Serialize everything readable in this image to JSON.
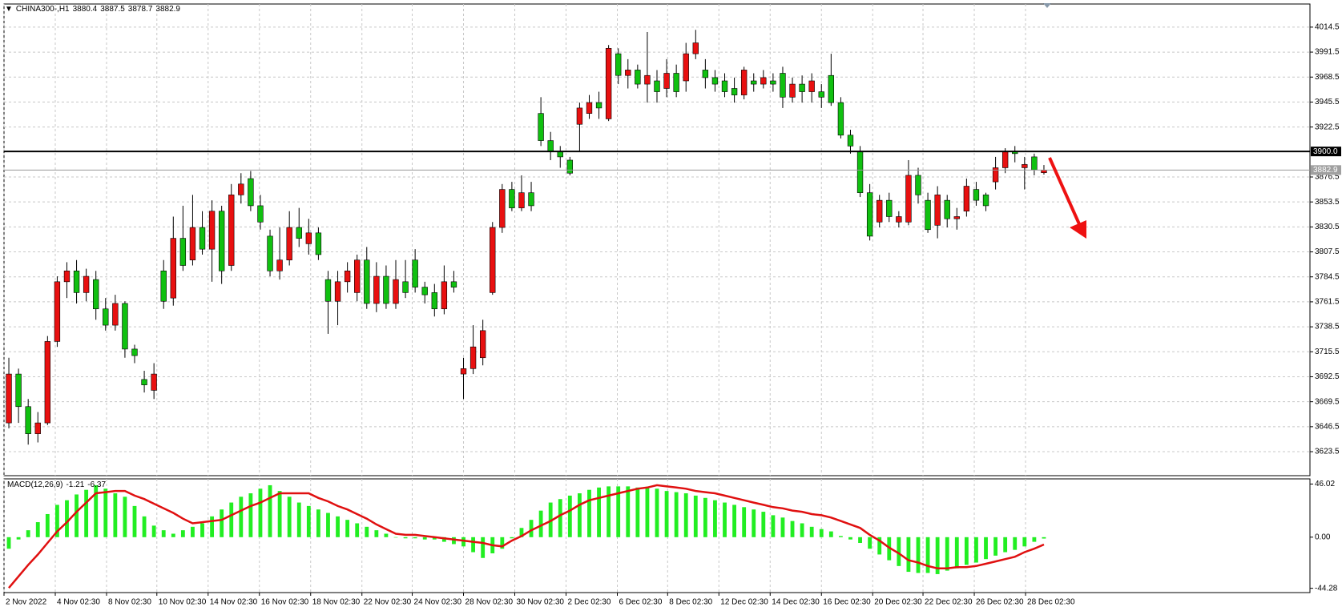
{
  "chart_data": {
    "type": "candlestick",
    "title": "CHINA300-,H1",
    "up_color": "#e81010",
    "down_color": "#10c010",
    "grid": true,
    "xlim": [
      0,
      135
    ],
    "xticks": [
      {
        "value": 0,
        "label": "2 Nov 2022"
      },
      {
        "value": 5.3,
        "label": "4 Nov 02:30"
      },
      {
        "value": 10.6,
        "label": "8 Nov 02:30"
      },
      {
        "value": 15.8,
        "label": "10 Nov 02:30"
      },
      {
        "value": 21.1,
        "label": "14 Nov 02:30"
      },
      {
        "value": 26.4,
        "label": "16 Nov 02:30"
      },
      {
        "value": 31.7,
        "label": "18 Nov 02:30"
      },
      {
        "value": 37.0,
        "label": "22 Nov 02:30"
      },
      {
        "value": 42.2,
        "label": "24 Nov 02:30"
      },
      {
        "value": 47.5,
        "label": "28 Nov 02:30"
      },
      {
        "value": 52.8,
        "label": "30 Nov 02:30"
      },
      {
        "value": 58.1,
        "label": "2 Dec 02:30"
      },
      {
        "value": 63.4,
        "label": "6 Dec 02:30"
      },
      {
        "value": 68.6,
        "label": "8 Dec 02:30"
      },
      {
        "value": 73.9,
        "label": "12 Dec 02:30"
      },
      {
        "value": 79.2,
        "label": "14 Dec 02:30"
      },
      {
        "value": 84.5,
        "label": "16 Dec 02:30"
      },
      {
        "value": 89.8,
        "label": "20 Dec 02:30"
      },
      {
        "value": 95.0,
        "label": "22 Dec 02:30"
      },
      {
        "value": 100.3,
        "label": "26 Dec 02:30"
      },
      {
        "value": 105.6,
        "label": "28 Dec 02:30"
      }
    ],
    "ylim": [
      3601.4,
      4035.8
    ],
    "yticks": [
      3623.5,
      3646.5,
      3669.5,
      3692.5,
      3715.5,
      3738.5,
      3761.5,
      3784.5,
      3807.5,
      3830.5,
      3853.5,
      3876.5,
      3922.5,
      3945.5,
      3968.5,
      3991.5,
      4014.5
    ],
    "levels": [
      {
        "value": 3900,
        "label": "3900.0",
        "color": "#000000"
      }
    ],
    "candles": [
      {
        "open": 3650,
        "high": 3710,
        "low": 3645,
        "close": 3695
      },
      {
        "open": 3695,
        "high": 3700,
        "low": 3650,
        "close": 3665
      },
      {
        "open": 3665,
        "high": 3672,
        "low": 3630,
        "close": 3640
      },
      {
        "open": 3640,
        "high": 3660,
        "low": 3632,
        "close": 3650
      },
      {
        "open": 3650,
        "high": 3730,
        "low": 3648,
        "close": 3725
      },
      {
        "open": 3725,
        "high": 3785,
        "low": 3720,
        "close": 3780
      },
      {
        "open": 3780,
        "high": 3798,
        "low": 3765,
        "close": 3790
      },
      {
        "open": 3790,
        "high": 3800,
        "low": 3760,
        "close": 3770
      },
      {
        "open": 3770,
        "high": 3792,
        "low": 3762,
        "close": 3785
      },
      {
        "open": 3782,
        "high": 3790,
        "low": 3745,
        "close": 3755
      },
      {
        "open": 3755,
        "high": 3765,
        "low": 3735,
        "close": 3740
      },
      {
        "open": 3740,
        "high": 3768,
        "low": 3735,
        "close": 3760
      },
      {
        "open": 3760,
        "high": 3762,
        "low": 3710,
        "close": 3718
      },
      {
        "open": 3718,
        "high": 3722,
        "low": 3705,
        "close": 3712
      },
      {
        "open": 3690,
        "high": 3698,
        "low": 3678,
        "close": 3685
      },
      {
        "open": 3680,
        "high": 3705,
        "low": 3672,
        "close": 3695
      },
      {
        "open": 3790,
        "high": 3800,
        "low": 3755,
        "close": 3762
      },
      {
        "open": 3765,
        "high": 3840,
        "low": 3758,
        "close": 3820
      },
      {
        "open": 3820,
        "high": 3850,
        "low": 3790,
        "close": 3795
      },
      {
        "open": 3800,
        "high": 3860,
        "low": 3795,
        "close": 3830
      },
      {
        "open": 3830,
        "high": 3845,
        "low": 3805,
        "close": 3810
      },
      {
        "open": 3810,
        "high": 3855,
        "low": 3780,
        "close": 3845
      },
      {
        "open": 3845,
        "high": 3850,
        "low": 3778,
        "close": 3790
      },
      {
        "open": 3795,
        "high": 3870,
        "low": 3790,
        "close": 3860
      },
      {
        "open": 3860,
        "high": 3880,
        "low": 3852,
        "close": 3870
      },
      {
        "open": 3875,
        "high": 3882,
        "low": 3845,
        "close": 3850
      },
      {
        "open": 3850,
        "high": 3860,
        "low": 3828,
        "close": 3835
      },
      {
        "open": 3822,
        "high": 3828,
        "low": 3785,
        "close": 3790
      },
      {
        "open": 3790,
        "high": 3830,
        "low": 3782,
        "close": 3800
      },
      {
        "open": 3800,
        "high": 3845,
        "low": 3795,
        "close": 3830
      },
      {
        "open": 3830,
        "high": 3848,
        "low": 3812,
        "close": 3820
      },
      {
        "open": 3815,
        "high": 3838,
        "low": 3805,
        "close": 3825
      },
      {
        "open": 3825,
        "high": 3830,
        "low": 3800,
        "close": 3805
      },
      {
        "open": 3782,
        "high": 3790,
        "low": 3732,
        "close": 3762
      },
      {
        "open": 3762,
        "high": 3790,
        "low": 3740,
        "close": 3780
      },
      {
        "open": 3780,
        "high": 3798,
        "low": 3770,
        "close": 3790
      },
      {
        "open": 3770,
        "high": 3805,
        "low": 3762,
        "close": 3800
      },
      {
        "open": 3800,
        "high": 3812,
        "low": 3755,
        "close": 3760
      },
      {
        "open": 3760,
        "high": 3798,
        "low": 3752,
        "close": 3785
      },
      {
        "open": 3785,
        "high": 3795,
        "low": 3755,
        "close": 3760
      },
      {
        "open": 3760,
        "high": 3800,
        "low": 3755,
        "close": 3782
      },
      {
        "open": 3780,
        "high": 3800,
        "low": 3765,
        "close": 3770
      },
      {
        "open": 3800,
        "high": 3810,
        "low": 3770,
        "close": 3775
      },
      {
        "open": 3775,
        "high": 3780,
        "low": 3760,
        "close": 3768
      },
      {
        "open": 3770,
        "high": 3778,
        "low": 3748,
        "close": 3755
      },
      {
        "open": 3755,
        "high": 3795,
        "low": 3750,
        "close": 3780
      },
      {
        "open": 3780,
        "high": 3790,
        "low": 3770,
        "close": 3775
      },
      {
        "open": 3695,
        "high": 3710,
        "low": 3672,
        "close": 3700
      },
      {
        "open": 3700,
        "high": 3740,
        "low": 3695,
        "close": 3720
      },
      {
        "open": 3710,
        "high": 3745,
        "low": 3703,
        "close": 3735
      },
      {
        "open": 3770,
        "high": 3835,
        "low": 3768,
        "close": 3830
      },
      {
        "open": 3830,
        "high": 3870,
        "low": 3825,
        "close": 3865
      },
      {
        "open": 3865,
        "high": 3872,
        "low": 3845,
        "close": 3848
      },
      {
        "open": 3848,
        "high": 3878,
        "low": 3845,
        "close": 3862
      },
      {
        "open": 3862,
        "high": 3872,
        "low": 3845,
        "close": 3850
      },
      {
        "open": 3935,
        "high": 3950,
        "low": 3905,
        "close": 3910
      },
      {
        "open": 3910,
        "high": 3918,
        "low": 3892,
        "close": 3900
      },
      {
        "open": 3900,
        "high": 3905,
        "low": 3885,
        "close": 3895
      },
      {
        "open": 3892,
        "high": 3895,
        "low": 3878,
        "close": 3880
      },
      {
        "open": 3925,
        "high": 3945,
        "low": 3900,
        "close": 3940
      },
      {
        "open": 3935,
        "high": 3952,
        "low": 3930,
        "close": 3945
      },
      {
        "open": 3945,
        "high": 3955,
        "low": 3930,
        "close": 3940
      },
      {
        "open": 3930,
        "high": 3998,
        "low": 3928,
        "close": 3995
      },
      {
        "open": 3990,
        "high": 3995,
        "low": 3962,
        "close": 3970
      },
      {
        "open": 3970,
        "high": 3985,
        "low": 3958,
        "close": 3975
      },
      {
        "open": 3975,
        "high": 3980,
        "low": 3958,
        "close": 3962
      },
      {
        "open": 3962,
        "high": 4010,
        "low": 3945,
        "close": 3970
      },
      {
        "open": 3965,
        "high": 3975,
        "low": 3945,
        "close": 3955
      },
      {
        "open": 3958,
        "high": 3985,
        "low": 3950,
        "close": 3972
      },
      {
        "open": 3972,
        "high": 3980,
        "low": 3950,
        "close": 3955
      },
      {
        "open": 3965,
        "high": 4000,
        "low": 3955,
        "close": 3990
      },
      {
        "open": 3990,
        "high": 4012,
        "low": 3985,
        "close": 4000
      },
      {
        "open": 3975,
        "high": 3985,
        "low": 3958,
        "close": 3968
      },
      {
        "open": 3968,
        "high": 3975,
        "low": 3955,
        "close": 3962
      },
      {
        "open": 3965,
        "high": 3972,
        "low": 3950,
        "close": 3955
      },
      {
        "open": 3958,
        "high": 3968,
        "low": 3945,
        "close": 3952
      },
      {
        "open": 3952,
        "high": 3978,
        "low": 3948,
        "close": 3975
      },
      {
        "open": 3965,
        "high": 3972,
        "low": 3955,
        "close": 3962
      },
      {
        "open": 3962,
        "high": 3975,
        "low": 3958,
        "close": 3968
      },
      {
        "open": 3965,
        "high": 3972,
        "low": 3955,
        "close": 3962
      },
      {
        "open": 3972,
        "high": 3978,
        "low": 3940,
        "close": 3950
      },
      {
        "open": 3950,
        "high": 3968,
        "low": 3945,
        "close": 3962
      },
      {
        "open": 3962,
        "high": 3970,
        "low": 3945,
        "close": 3955
      },
      {
        "open": 3955,
        "high": 3972,
        "low": 3945,
        "close": 3965
      },
      {
        "open": 3955,
        "high": 3962,
        "low": 3940,
        "close": 3950
      },
      {
        "open": 3970,
        "high": 3990,
        "low": 3942,
        "close": 3945
      },
      {
        "open": 3945,
        "high": 3950,
        "low": 3912,
        "close": 3915
      },
      {
        "open": 3915,
        "high": 3920,
        "low": 3898,
        "close": 3905
      },
      {
        "open": 3900,
        "high": 3905,
        "low": 3858,
        "close": 3862
      },
      {
        "open": 3862,
        "high": 3870,
        "low": 3818,
        "close": 3822
      },
      {
        "open": 3835,
        "high": 3860,
        "low": 3830,
        "close": 3855
      },
      {
        "open": 3855,
        "high": 3862,
        "low": 3835,
        "close": 3840
      },
      {
        "open": 3835,
        "high": 3845,
        "low": 3830,
        "close": 3840
      },
      {
        "open": 3835,
        "high": 3892,
        "low": 3832,
        "close": 3878
      },
      {
        "open": 3878,
        "high": 3885,
        "low": 3852,
        "close": 3860
      },
      {
        "open": 3855,
        "high": 3862,
        "low": 3825,
        "close": 3828
      },
      {
        "open": 3832,
        "high": 3868,
        "low": 3820,
        "close": 3860
      },
      {
        "open": 3855,
        "high": 3860,
        "low": 3830,
        "close": 3838
      },
      {
        "open": 3838,
        "high": 3848,
        "low": 3828,
        "close": 3840
      },
      {
        "open": 3845,
        "high": 3875,
        "low": 3840,
        "close": 3868
      },
      {
        "open": 3865,
        "high": 3872,
        "low": 3850,
        "close": 3855
      },
      {
        "open": 3860,
        "high": 3862,
        "low": 3845,
        "close": 3850
      },
      {
        "open": 3872,
        "high": 3895,
        "low": 3865,
        "close": 3885
      },
      {
        "open": 3885,
        "high": 3903,
        "low": 3880,
        "close": 3900
      },
      {
        "open": 3900,
        "high": 3905,
        "low": 3890,
        "close": 3898
      },
      {
        "open": 3885,
        "high": 3895,
        "low": 3865,
        "close": 3888
      },
      {
        "open": 3895,
        "high": 3898,
        "low": 3878,
        "close": 3883
      },
      {
        "open": 3880.4,
        "high": 3887.5,
        "low": 3878.7,
        "close": 3882.9
      }
    ],
    "indicator": {
      "type": "macd",
      "name": "MACD(12,26,9)",
      "histogram_color": "#22ee22",
      "signal_color": "#e01010",
      "ylim": [
        -48,
        50.5
      ],
      "yticks": [
        46.02,
        {
          "value": 0,
          "label": "0.00"
        },
        -44.28
      ],
      "histogram": [
        -10,
        -2,
        6,
        13,
        20,
        28,
        32,
        37,
        41,
        45,
        42,
        38,
        35,
        27,
        18,
        10,
        6,
        3,
        6,
        9,
        12,
        18,
        24,
        30,
        35,
        38,
        42,
        45,
        40,
        35,
        30,
        27,
        24,
        21,
        18,
        15,
        12,
        9,
        6,
        3,
        0,
        -1,
        -1,
        -2,
        -2,
        -4,
        -6,
        -8,
        -13,
        -18,
        -14,
        -10,
        -1,
        8,
        15,
        23,
        30,
        33,
        36,
        38,
        41,
        43,
        44,
        44,
        44,
        43,
        43,
        42,
        40,
        39,
        38,
        36,
        34,
        32,
        30,
        28,
        26,
        24,
        22,
        19,
        17,
        14,
        12,
        9,
        7,
        5,
        1,
        -2,
        -5,
        -10,
        -15,
        -20,
        -25,
        -30,
        -31,
        -31,
        -32,
        -29,
        -27,
        -24,
        -22,
        -19,
        -16,
        -13,
        -11,
        -8,
        -4,
        -1.21
      ],
      "signal": [
        -44,
        -34,
        -24,
        -15,
        -5,
        5,
        13,
        22,
        30,
        38,
        39,
        40,
        40,
        36,
        33,
        29,
        25,
        21,
        16,
        12,
        13,
        14,
        15,
        19,
        23,
        27,
        30,
        34,
        38,
        38,
        38,
        38,
        34,
        31,
        27,
        24,
        20,
        16,
        11,
        7,
        3,
        2,
        2,
        1,
        0,
        -1,
        -2,
        -3,
        -4,
        -5,
        -7,
        -8,
        -3,
        1,
        6,
        10,
        14,
        19,
        23,
        28,
        32,
        34,
        36,
        38,
        40,
        42,
        43,
        45,
        44,
        43,
        42,
        40,
        39,
        38,
        36,
        34,
        32,
        30,
        28,
        26,
        25,
        23,
        22,
        20,
        19,
        17,
        14,
        11,
        8,
        2,
        -3,
        -9,
        -14,
        -20,
        -22,
        -25,
        -27,
        -27,
        -26,
        -26,
        -25,
        -23,
        -21,
        -19,
        -17,
        -13,
        -10,
        -6.37
      ]
    }
  }
}
